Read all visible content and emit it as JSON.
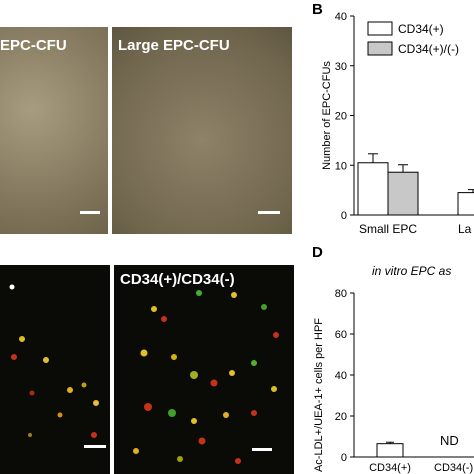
{
  "panel_A": {
    "left_image_label": "EPC-CFU",
    "right_image_label": "Large EPC-CFU"
  },
  "panel_B": {
    "letter": "B"
  },
  "panel_C": {
    "right_image_label": "CD34(+)/CD34(-)"
  },
  "panel_D": {
    "letter": "D",
    "title": "in vitro EPC as"
  },
  "colors": {
    "cd34_pos_bar": "#ffffff",
    "cd34_mixed_bar": "#c8c8c8",
    "phase_contrast_bg": "#8c7f64",
    "fluorescence_bg": "#0a0a06"
  },
  "chart_data": [
    {
      "type": "bar",
      "ylabel": "Number of EPC-CFUs",
      "ylim": [
        0,
        40
      ],
      "yticks": [
        "0",
        "10",
        "20",
        "30",
        "40"
      ],
      "categories": [
        "Small EPC",
        "La"
      ],
      "series": [
        {
          "name": "CD34(+)",
          "values": [
            10.5,
            4.5
          ],
          "errors": [
            1.8,
            0.6
          ]
        },
        {
          "name": "CD34(+)/(-)",
          "values": [
            8.6,
            null
          ],
          "errors": [
            1.5,
            null
          ]
        }
      ]
    },
    {
      "type": "bar",
      "ylabel": "Ac-LDL+/UEA-1+ cells per HPF",
      "ylim": [
        0,
        80
      ],
      "yticks": [
        "0",
        "20",
        "40",
        "60",
        "80"
      ],
      "categories": [
        "CD34(+)",
        "CD34(-)"
      ],
      "values": [
        6.5,
        null
      ],
      "errors": [
        0.7,
        null
      ],
      "annotations": [
        "ND"
      ]
    }
  ]
}
